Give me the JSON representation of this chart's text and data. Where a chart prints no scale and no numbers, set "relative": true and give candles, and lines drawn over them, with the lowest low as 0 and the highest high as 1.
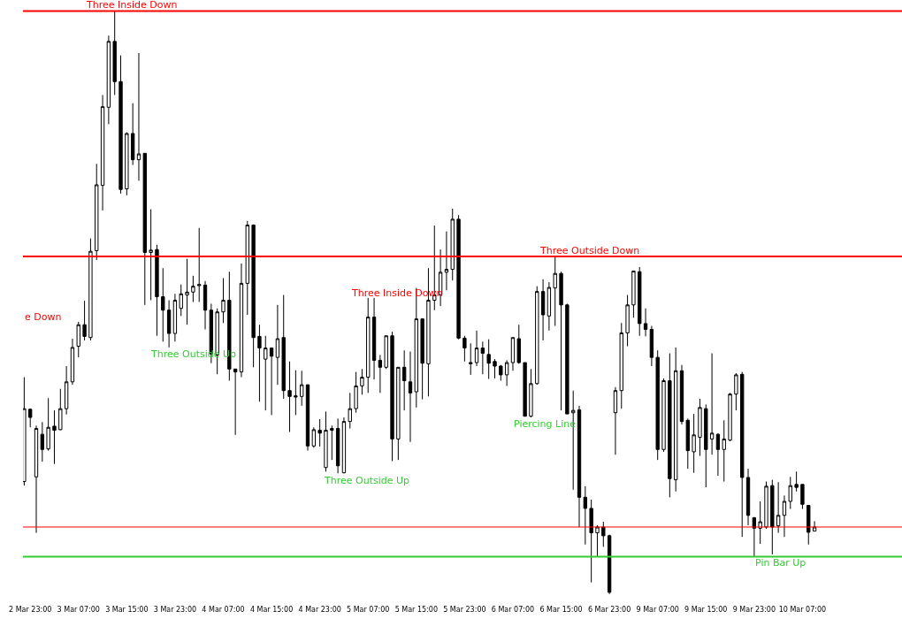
{
  "chart_data": {
    "type": "candlestick",
    "relative": true,
    "color": "#000000",
    "categories": [
      null,
      "2 Mar 23:00",
      null,
      null,
      null,
      null,
      null,
      null,
      null,
      "3 Mar 07:00",
      null,
      null,
      null,
      null,
      null,
      null,
      null,
      "3 Mar 15:00",
      null,
      null,
      null,
      null,
      null,
      null,
      null,
      "3 Mar 23:00",
      null,
      null,
      null,
      null,
      null,
      null,
      null,
      "4 Mar 07:00",
      null,
      null,
      null,
      null,
      null,
      null,
      null,
      "4 Mar 15:00",
      null,
      null,
      null,
      null,
      null,
      null,
      null,
      "4 Mar 23:00",
      null,
      null,
      null,
      null,
      null,
      null,
      null,
      "5 Mar 07:00",
      null,
      null,
      null,
      null,
      null,
      null,
      null,
      "5 Mar 15:00",
      null,
      null,
      null,
      null,
      null,
      null,
      null,
      "5 Mar 23:00",
      null,
      null,
      null,
      null,
      null,
      null,
      null,
      "6 Mar 07:00",
      null,
      null,
      null,
      null,
      null,
      null,
      null,
      "6 Mar 15:00",
      null,
      null,
      null,
      null,
      null,
      null,
      null,
      "6 Mar 23:00",
      null,
      null,
      null,
      null,
      null,
      null,
      null,
      "9 Mar 07:00",
      null,
      null,
      null,
      null,
      null,
      null,
      null,
      "9 Mar 15:00",
      null,
      null,
      null,
      null,
      null,
      null,
      null,
      "9 Mar 23:00",
      null,
      null,
      null,
      null,
      null,
      null,
      null,
      "10 Mar 07:00",
      null,
      null
    ],
    "ohlc": [
      [
        0.193,
        0.372,
        0.186,
        0.318
      ],
      [
        0.317,
        0.318,
        0.286,
        0.303
      ],
      [
        0.201,
        0.289,
        0.105,
        0.284
      ],
      [
        0.274,
        0.295,
        0.227,
        0.248
      ],
      [
        0.249,
        0.336,
        0.246,
        0.286
      ],
      [
        0.288,
        0.315,
        0.223,
        0.281
      ],
      [
        0.282,
        0.352,
        0.281,
        0.318
      ],
      [
        0.318,
        0.391,
        0.308,
        0.364
      ],
      [
        0.364,
        0.438,
        0.359,
        0.423
      ],
      [
        0.425,
        0.467,
        0.406,
        0.462
      ],
      [
        0.462,
        0.503,
        0.435,
        0.442
      ],
      [
        0.44,
        0.61,
        0.435,
        0.588
      ],
      [
        0.589,
        0.738,
        0.573,
        0.702
      ],
      [
        0.701,
        0.856,
        0.658,
        0.836
      ],
      [
        0.835,
        0.958,
        0.806,
        0.948
      ],
      [
        0.948,
        1.0,
        0.856,
        0.879
      ],
      [
        0.879,
        0.924,
        0.687,
        0.694
      ],
      [
        0.695,
        0.792,
        0.684,
        0.79
      ],
      [
        0.79,
        0.842,
        0.736,
        0.745
      ],
      [
        0.745,
        0.928,
        0.709,
        0.755
      ],
      [
        0.756,
        0.756,
        0.496,
        0.586
      ],
      [
        0.586,
        0.66,
        0.504,
        0.59
      ],
      [
        0.591,
        0.599,
        0.443,
        0.51
      ],
      [
        0.51,
        0.559,
        0.433,
        0.487
      ],
      [
        0.487,
        0.504,
        0.423,
        0.447
      ],
      [
        0.447,
        0.515,
        0.433,
        0.504
      ],
      [
        0.49,
        0.531,
        0.477,
        0.515
      ],
      [
        0.513,
        0.575,
        0.462,
        0.518
      ],
      [
        0.518,
        0.546,
        0.501,
        0.528
      ],
      [
        0.529,
        0.628,
        0.501,
        0.531
      ],
      [
        0.53,
        0.537,
        0.454,
        0.487
      ],
      [
        0.487,
        0.498,
        0.396,
        0.412
      ],
      [
        0.41,
        0.49,
        0.377,
        0.484
      ],
      [
        0.484,
        0.542,
        0.465,
        0.504
      ],
      [
        0.504,
        0.553,
        0.366,
        0.386
      ],
      [
        0.386,
        0.386,
        0.273,
        0.381
      ],
      [
        0.381,
        0.567,
        0.372,
        0.533
      ],
      [
        0.533,
        0.64,
        0.479,
        0.633
      ],
      [
        0.633,
        0.634,
        0.389,
        0.44
      ],
      [
        0.442,
        0.462,
        0.33,
        0.422
      ],
      [
        0.403,
        0.443,
        0.315,
        0.422
      ],
      [
        0.422,
        0.422,
        0.307,
        0.408
      ],
      [
        0.406,
        0.496,
        0.359,
        0.438
      ],
      [
        0.44,
        0.513,
        0.335,
        0.349
      ],
      [
        0.349,
        0.399,
        0.278,
        0.339
      ],
      [
        0.34,
        0.384,
        0.307,
        0.338
      ],
      [
        0.339,
        0.383,
        0.323,
        0.359
      ],
      [
        0.359,
        0.359,
        0.246,
        0.254
      ],
      [
        0.254,
        0.286,
        0.251,
        0.282
      ],
      [
        0.281,
        0.3,
        0.253,
        0.276
      ],
      [
        0.217,
        0.313,
        0.21,
        0.281
      ],
      [
        0.281,
        0.289,
        0.23,
        0.284
      ],
      [
        0.284,
        0.301,
        0.207,
        0.22
      ],
      [
        0.208,
        0.303,
        0.207,
        0.296
      ],
      [
        0.296,
        0.345,
        0.284,
        0.318
      ],
      [
        0.318,
        0.381,
        0.311,
        0.357
      ],
      [
        0.357,
        0.386,
        0.342,
        0.372
      ],
      [
        0.372,
        0.508,
        0.345,
        0.475
      ],
      [
        0.475,
        0.508,
        0.368,
        0.401
      ],
      [
        0.401,
        0.41,
        0.345,
        0.389
      ],
      [
        0.389,
        0.443,
        0.386,
        0.443
      ],
      [
        0.443,
        0.45,
        0.228,
        0.266
      ],
      [
        0.266,
        0.389,
        0.23,
        0.389
      ],
      [
        0.389,
        0.418,
        0.315,
        0.366
      ],
      [
        0.364,
        0.416,
        0.261,
        0.345
      ],
      [
        0.347,
        0.525,
        0.32,
        0.472
      ],
      [
        0.472,
        0.472,
        0.334,
        0.396
      ],
      [
        0.395,
        0.559,
        0.339,
        0.504
      ],
      [
        0.504,
        0.632,
        0.487,
        0.513
      ],
      [
        0.513,
        0.591,
        0.494,
        0.552
      ],
      [
        0.552,
        0.622,
        0.521,
        0.557
      ],
      [
        0.557,
        0.661,
        0.538,
        0.643
      ],
      [
        0.643,
        0.65,
        0.437,
        0.439
      ],
      [
        0.439,
        0.443,
        0.399,
        0.422
      ],
      [
        0.395,
        0.43,
        0.376,
        0.397
      ],
      [
        0.397,
        0.452,
        0.391,
        0.422
      ],
      [
        0.422,
        0.433,
        0.377,
        0.413
      ],
      [
        0.411,
        0.437,
        0.369,
        0.396
      ],
      [
        0.399,
        0.403,
        0.37,
        0.391
      ],
      [
        0.391,
        0.393,
        0.366,
        0.376
      ],
      [
        0.376,
        0.401,
        0.357,
        0.397
      ],
      [
        0.397,
        0.44,
        0.383,
        0.44
      ],
      [
        0.438,
        0.462,
        0.395,
        0.397
      ],
      [
        0.397,
        0.397,
        0.305,
        0.305
      ],
      [
        0.305,
        0.386,
        0.303,
        0.361
      ],
      [
        0.361,
        0.528,
        0.359,
        0.519
      ],
      [
        0.519,
        0.54,
        0.435,
        0.479
      ],
      [
        0.477,
        0.535,
        0.452,
        0.526
      ],
      [
        0.525,
        0.579,
        0.46,
        0.55
      ],
      [
        0.55,
        0.553,
        0.315,
        0.496
      ],
      [
        0.496,
        0.498,
        0.309,
        0.309
      ],
      [
        0.311,
        0.349,
        0.179,
        0.315
      ],
      [
        0.316,
        0.323,
        0.115,
        0.166
      ],
      [
        0.166,
        0.185,
        0.085,
        0.147
      ],
      [
        0.147,
        0.162,
        0.02,
        0.105
      ],
      [
        0.105,
        0.118,
        0.064,
        0.115
      ],
      [
        0.115,
        0.124,
        0.081,
        0.1
      ],
      [
        0.1,
        0.102,
        0.0,
        0.003
      ],
      [
        0.311,
        0.355,
        0.239,
        0.349
      ],
      [
        0.349,
        0.465,
        0.318,
        0.448
      ],
      [
        0.448,
        0.513,
        0.425,
        0.496
      ],
      [
        0.496,
        0.554,
        0.474,
        0.554
      ],
      [
        0.553,
        0.561,
        0.443,
        0.464
      ],
      [
        0.464,
        0.49,
        0.442,
        0.454
      ],
      [
        0.454,
        0.46,
        0.391,
        0.406
      ],
      [
        0.406,
        0.418,
        0.23,
        0.248
      ],
      [
        0.248,
        0.37,
        0.244,
        0.366
      ],
      [
        0.366,
        0.413,
        0.166,
        0.198
      ],
      [
        0.196,
        0.423,
        0.176,
        0.383
      ],
      [
        0.383,
        0.393,
        0.291,
        0.296
      ],
      [
        0.298,
        0.301,
        0.215,
        0.246
      ],
      [
        0.244,
        0.309,
        0.208,
        0.273
      ],
      [
        0.269,
        0.335,
        0.237,
        0.32
      ],
      [
        0.318,
        0.325,
        0.183,
        0.248
      ],
      [
        0.266,
        0.413,
        0.239,
        0.276
      ],
      [
        0.274,
        0.276,
        0.203,
        0.248
      ],
      [
        0.248,
        0.298,
        0.193,
        0.266
      ],
      [
        0.264,
        0.345,
        0.262,
        0.343
      ],
      [
        0.343,
        0.379,
        0.315,
        0.376
      ],
      [
        0.377,
        0.381,
        0.098,
        0.2
      ],
      [
        0.2,
        0.215,
        0.118,
        0.135
      ],
      [
        0.131,
        0.132,
        0.064,
        0.113
      ],
      [
        0.113,
        0.159,
        0.086,
        0.124
      ],
      [
        0.115,
        0.193,
        0.112,
        0.185
      ],
      [
        0.186,
        0.196,
        0.068,
        0.115
      ],
      [
        0.117,
        0.192,
        0.105,
        0.135
      ],
      [
        0.135,
        0.169,
        0.098,
        0.159
      ],
      [
        0.159,
        0.201,
        0.146,
        0.186
      ],
      [
        0.188,
        0.21,
        0.176,
        0.183
      ],
      [
        0.188,
        0.188,
        0.146,
        0.154
      ],
      [
        0.152,
        0.152,
        0.085,
        0.106
      ],
      [
        0.108,
        0.125,
        0.108,
        0.115
      ]
    ],
    "ref_lines": [
      {
        "axis": "y",
        "value": 1.0,
        "label": null,
        "color": "#ff0000",
        "line_style": "solid"
      },
      {
        "axis": "y",
        "value": 0.579,
        "label": null,
        "color": "#ff0000",
        "line_style": "solid"
      },
      {
        "axis": "y",
        "value": 0.115,
        "label": null,
        "color": "#ff0000",
        "line_style": "solid"
      },
      {
        "axis": "y",
        "value": 0.064,
        "label": null,
        "color": "#33cc33",
        "line_style": "solid"
      }
    ],
    "annotations": [
      "Three Inside Down",
      "e Down",
      "Three Outside Up",
      "Three Outside Up",
      "Three Inside Down",
      "Piercing Line",
      "Three Outside Down",
      "Pin Bar Up"
    ]
  }
}
